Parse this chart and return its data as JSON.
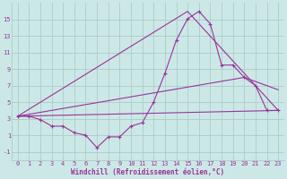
{
  "xlabel": "Windchill (Refroidissement éolien,°C)",
  "bg_color": "#cce8e6",
  "grid_color": "#aaccca",
  "line_color": "#993399",
  "xlim": [
    -0.5,
    23.5
  ],
  "ylim": [
    -2.0,
    17.0
  ],
  "xticks": [
    0,
    1,
    2,
    3,
    4,
    5,
    6,
    7,
    8,
    9,
    10,
    11,
    12,
    13,
    14,
    15,
    16,
    17,
    18,
    19,
    20,
    21,
    22,
    23
  ],
  "yticks": [
    -1,
    1,
    3,
    5,
    7,
    9,
    11,
    13,
    15
  ],
  "series1_x": [
    0,
    1,
    2,
    3,
    4,
    5,
    6,
    7,
    8,
    9,
    10,
    11,
    12,
    13,
    14,
    15,
    16,
    17,
    18,
    19,
    20,
    21,
    22,
    23
  ],
  "series1_y": [
    3.3,
    3.3,
    2.9,
    2.1,
    2.1,
    1.3,
    1.0,
    -0.5,
    0.8,
    0.8,
    2.1,
    2.5,
    5.0,
    8.5,
    12.5,
    15.1,
    16.0,
    14.5,
    9.5,
    9.5,
    8.0,
    7.0,
    4.0,
    4.0
  ],
  "series2_x": [
    0,
    23
  ],
  "series2_y": [
    3.3,
    4.0
  ],
  "series3_x": [
    0,
    15,
    23
  ],
  "series3_y": [
    3.3,
    16.0,
    4.0
  ],
  "series4_x": [
    0,
    20,
    23
  ],
  "series4_y": [
    3.3,
    8.0,
    6.5
  ],
  "marker_x": [
    0,
    1,
    2,
    3,
    4,
    5,
    6,
    7,
    8,
    9,
    10,
    11,
    12,
    13,
    14,
    15,
    16,
    17,
    18,
    19,
    20,
    21,
    22,
    23
  ],
  "marker_y": [
    3.3,
    3.3,
    2.9,
    2.1,
    2.1,
    1.3,
    1.0,
    -0.5,
    0.8,
    0.8,
    2.1,
    2.5,
    5.0,
    8.5,
    12.5,
    15.1,
    16.0,
    14.5,
    9.5,
    9.5,
    8.0,
    7.0,
    4.0,
    4.0
  ]
}
